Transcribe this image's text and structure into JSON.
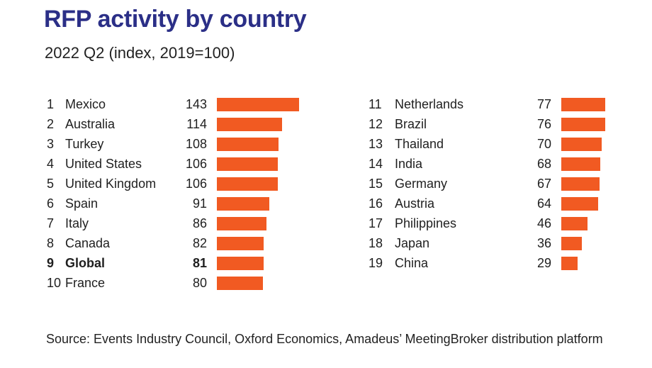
{
  "title": "RFP activity by country",
  "subtitle": "2022 Q2 (index, 2019=100)",
  "source": "Source: Events Industry Council, Oxford Economics, Amadeus’ MeetingBroker distribution platform",
  "colors": {
    "title": "#2b2f87",
    "bar": "#f15a22",
    "text": "#1f1f1f"
  },
  "chart_data": {
    "type": "bar",
    "orientation": "horizontal",
    "title": "RFP activity by country",
    "subtitle": "2022 Q2 (index, 2019=100)",
    "columns": [
      {
        "rows": [
          {
            "rank": "1",
            "name": "Mexico",
            "value": 143,
            "bold": false
          },
          {
            "rank": "2",
            "name": "Australia",
            "value": 114,
            "bold": false
          },
          {
            "rank": "3",
            "name": "Turkey",
            "value": 108,
            "bold": false
          },
          {
            "rank": "4",
            "name": "United States",
            "value": 106,
            "bold": false
          },
          {
            "rank": "5",
            "name": "United Kingdom",
            "value": 106,
            "bold": false
          },
          {
            "rank": "6",
            "name": "Spain",
            "value": 91,
            "bold": false
          },
          {
            "rank": "7",
            "name": "Italy",
            "value": 86,
            "bold": false
          },
          {
            "rank": "8",
            "name": "Canada",
            "value": 82,
            "bold": false
          },
          {
            "rank": "9",
            "name": "Global",
            "value": 81,
            "bold": true
          },
          {
            "rank": "10",
            "name": "France",
            "value": 80,
            "bold": false
          }
        ]
      },
      {
        "rows": [
          {
            "rank": "11",
            "name": "Netherlands",
            "value": 77,
            "bold": false
          },
          {
            "rank": "12",
            "name": "Brazil",
            "value": 76,
            "bold": false
          },
          {
            "rank": "13",
            "name": "Thailand",
            "value": 70,
            "bold": false
          },
          {
            "rank": "14",
            "name": "India",
            "value": 68,
            "bold": false
          },
          {
            "rank": "15",
            "name": "Germany",
            "value": 67,
            "bold": false
          },
          {
            "rank": "16",
            "name": "Austria",
            "value": 64,
            "bold": false
          },
          {
            "rank": "17",
            "name": "Philippines",
            "value": 46,
            "bold": false
          },
          {
            "rank": "18",
            "name": "Japan",
            "value": 36,
            "bold": false
          },
          {
            "rank": "19",
            "name": "China",
            "value": 29,
            "bold": false
          }
        ]
      }
    ]
  }
}
